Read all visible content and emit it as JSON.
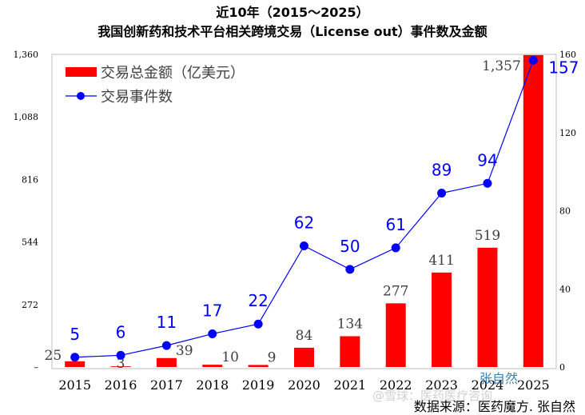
{
  "chart_data": {
    "type": "bar",
    "title": "近10年（2015～2025）",
    "subtitle": "我国创新药和技术平台相关跨境交易（License out）事件数及金额",
    "categories": [
      "2015",
      "2016",
      "2017",
      "2018",
      "2019",
      "2020",
      "2021",
      "2022",
      "2023",
      "2024",
      "2025"
    ],
    "series": [
      {
        "name": "交易总金额（亿美元）",
        "type": "bar",
        "axis": "left",
        "color": "#ff0000",
        "values": [
          25,
          3,
          39,
          10,
          9,
          84,
          134,
          277,
          411,
          519,
          1357
        ],
        "labels": [
          "25",
          "3",
          "39",
          "10",
          "9",
          "84",
          "134",
          "277",
          "411",
          "519",
          "1,357"
        ]
      },
      {
        "name": "交易事件数",
        "type": "line",
        "axis": "right",
        "color": "#0000ff",
        "values": [
          5,
          6,
          11,
          17,
          22,
          62,
          50,
          61,
          89,
          94,
          157
        ]
      }
    ],
    "y_left": {
      "min": 0,
      "max": 1360,
      "ticks": [
        0,
        272,
        544,
        816,
        1088,
        1360
      ],
      "tick_labels": [
        "–",
        "272",
        "544",
        "816",
        "1,088",
        "1,360"
      ]
    },
    "y_right": {
      "min": 0,
      "max": 160,
      "ticks": [
        0,
        40,
        80,
        120,
        160
      ],
      "tick_labels": [
        "0",
        "40",
        "80",
        "120",
        "160"
      ]
    },
    "legend": {
      "position": "top-left"
    },
    "grid": false
  },
  "source": "数据来源：医药魔方. 张自然",
  "watermarks": [
    "张自然",
    "@雪球：医药医疗咨询"
  ]
}
